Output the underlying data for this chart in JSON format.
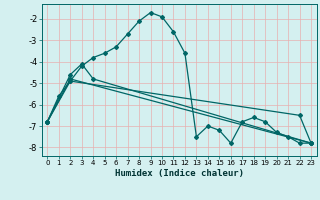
{
  "xlabel": "Humidex (Indice chaleur)",
  "background_color": "#d4f0f0",
  "grid_color": "#e8b0b0",
  "line_color": "#006666",
  "xlim": [
    -0.5,
    23.5
  ],
  "ylim": [
    -8.4,
    -1.3
  ],
  "xticks": [
    0,
    1,
    2,
    3,
    4,
    5,
    6,
    7,
    8,
    9,
    10,
    11,
    12,
    13,
    14,
    15,
    16,
    17,
    18,
    19,
    20,
    21,
    22,
    23
  ],
  "yticks": [
    -8,
    -7,
    -6,
    -5,
    -4,
    -3,
    -2
  ],
  "series1_x": [
    0,
    1,
    2,
    3,
    4,
    5,
    6,
    7,
    8,
    9,
    10,
    11,
    12,
    13,
    14,
    15,
    16,
    17,
    18,
    19,
    20,
    21,
    22,
    23
  ],
  "series1_y": [
    -6.8,
    -5.6,
    -4.9,
    -4.2,
    -3.8,
    -3.6,
    -3.3,
    -2.7,
    -2.1,
    -1.7,
    -1.9,
    -2.6,
    -3.6,
    -7.5,
    -7.0,
    -7.2,
    -7.8,
    -6.8,
    -6.6,
    -6.8,
    -7.3,
    -7.5,
    -7.8,
    -7.8
  ],
  "series2_x": [
    0,
    2,
    3,
    4,
    23
  ],
  "series2_y": [
    -6.8,
    -4.6,
    -4.1,
    -4.8,
    -7.8
  ],
  "series3_x": [
    0,
    2,
    23
  ],
  "series3_y": [
    -6.8,
    -4.8,
    -7.8
  ],
  "series4_x": [
    0,
    2,
    22,
    23
  ],
  "series4_y": [
    -6.8,
    -4.9,
    -6.5,
    -7.8
  ]
}
